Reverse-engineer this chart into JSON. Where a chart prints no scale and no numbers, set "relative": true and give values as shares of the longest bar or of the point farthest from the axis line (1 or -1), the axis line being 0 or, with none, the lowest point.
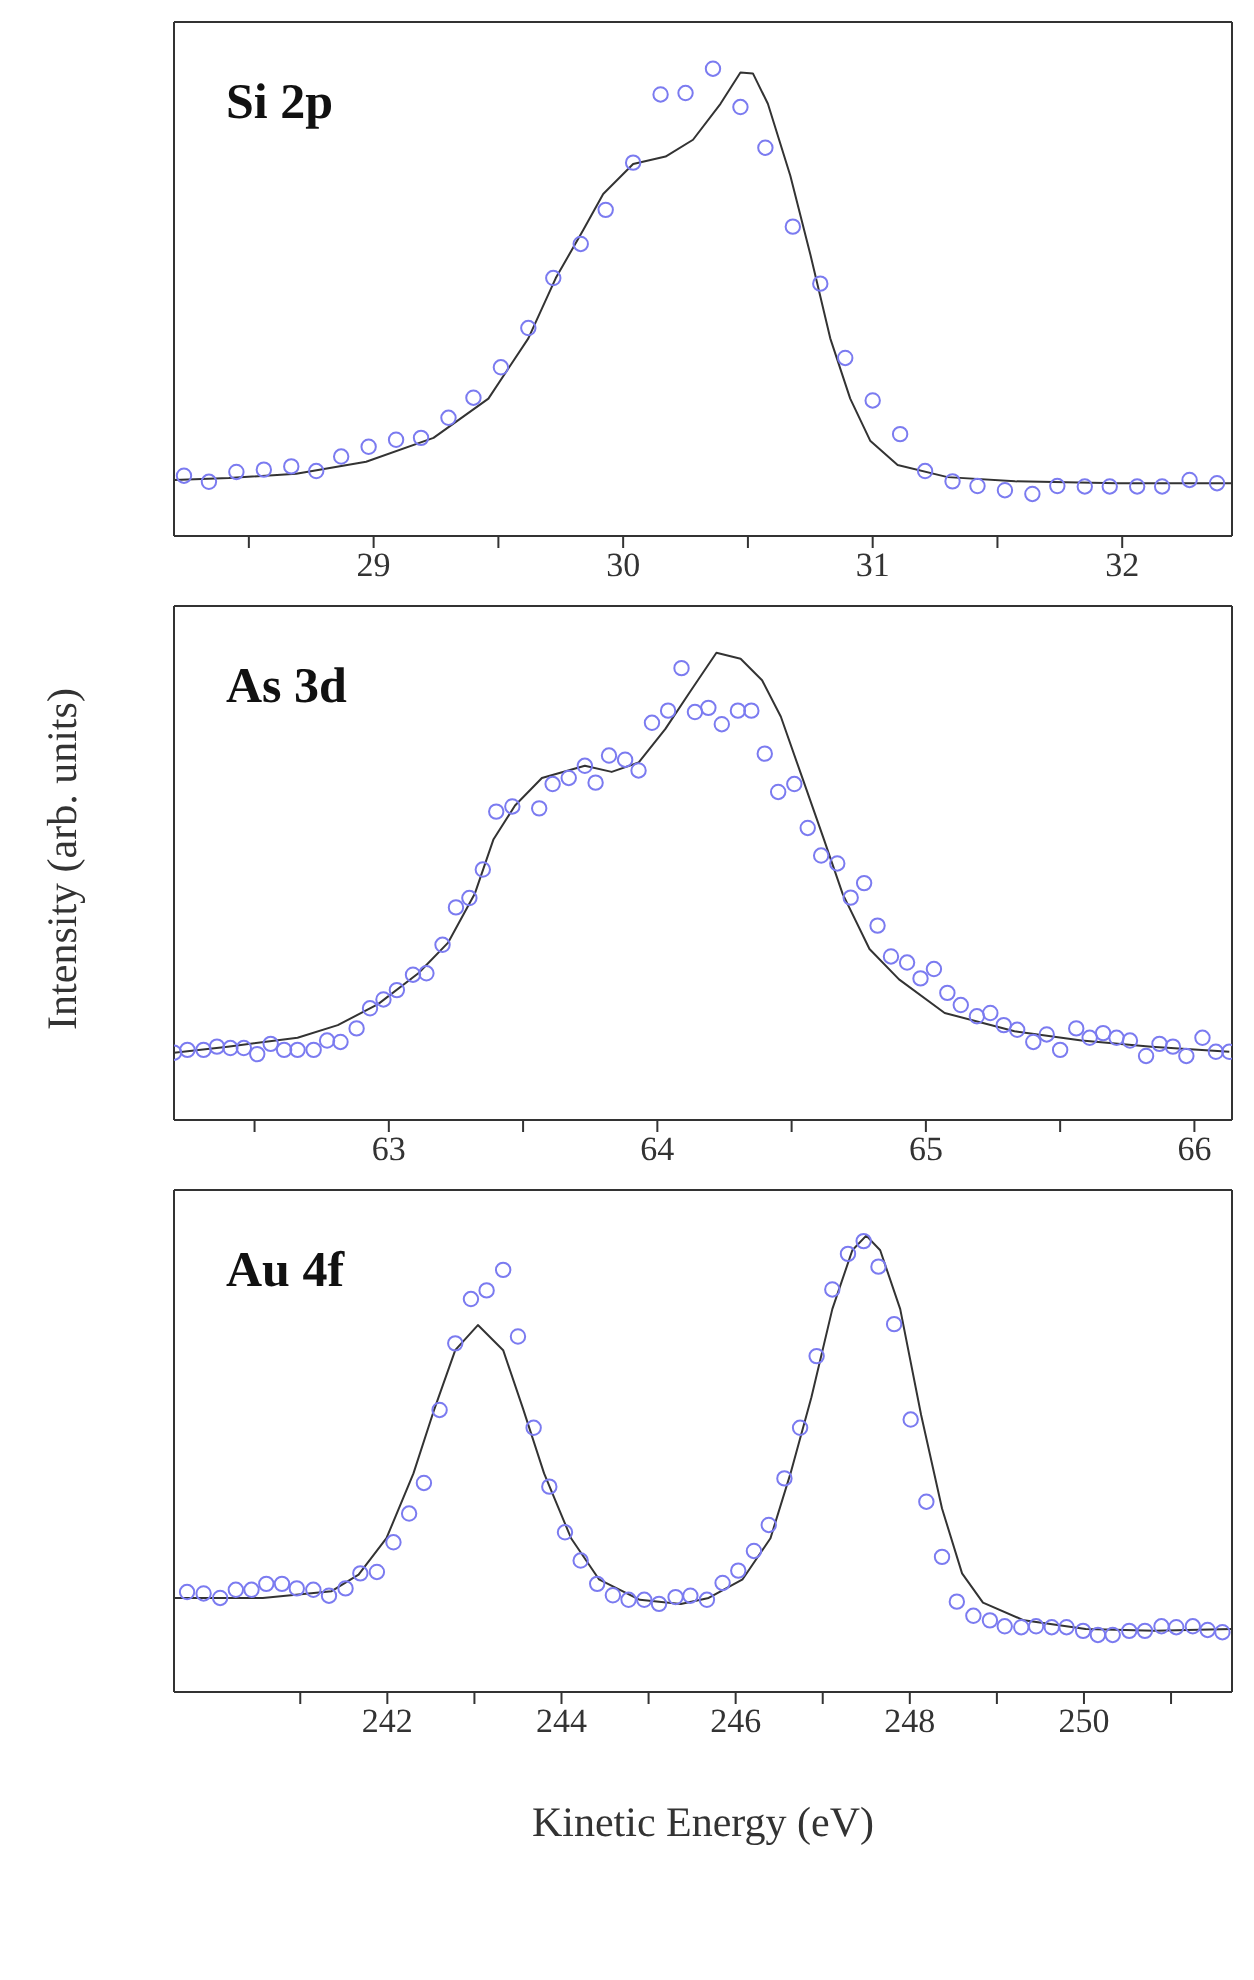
{
  "chart_data": [
    {
      "type": "line",
      "relative": true,
      "annotations": [
        "Si 2p"
      ],
      "xlim": [
        28.2,
        32.44
      ],
      "xticks": [
        {
          "value": 28.5,
          "label": null
        },
        29,
        {
          "value": 29.5,
          "label": null
        },
        30,
        {
          "value": 30.5,
          "label": null
        },
        31,
        {
          "value": 31.5,
          "label": null
        },
        32
      ],
      "tick_labels": "x",
      "series": [
        {
          "color": "#333333",
          "line_style": "solid",
          "x": [
            28.2,
            28.42,
            28.69,
            28.97,
            29.24,
            29.46,
            29.62,
            29.73,
            29.84,
            29.92,
            30.04,
            30.17,
            30.28,
            30.39,
            30.47,
            30.52,
            30.58,
            30.67,
            30.75,
            30.83,
            30.91,
            30.99,
            31.1,
            31.3,
            31.57,
            31.98,
            32.44
          ],
          "values": [
            0.12,
            0.124,
            0.133,
            0.159,
            0.21,
            0.294,
            0.423,
            0.552,
            0.655,
            0.732,
            0.796,
            0.812,
            0.848,
            0.925,
            0.992,
            0.99,
            0.925,
            0.771,
            0.603,
            0.423,
            0.294,
            0.204,
            0.152,
            0.126,
            0.117,
            0.113,
            0.113
          ]
        },
        {
          "type": "scatter",
          "color": "#7b7bf0",
          "marker": "circle",
          "x": [
            28.24,
            28.34,
            28.45,
            28.56,
            28.67,
            28.77,
            28.87,
            28.98,
            29.09,
            29.19,
            29.3,
            29.4,
            29.51,
            29.62,
            29.72,
            29.83,
            29.93,
            30.04,
            30.15,
            30.25,
            30.36,
            30.47,
            30.57,
            30.68,
            30.79,
            30.89,
            31.0,
            31.11,
            31.21,
            31.32,
            31.42,
            31.53,
            31.64,
            31.74,
            31.85,
            31.95,
            32.06,
            32.16,
            32.27,
            32.38
          ],
          "values": [
            0.129,
            0.116,
            0.137,
            0.142,
            0.149,
            0.139,
            0.17,
            0.191,
            0.206,
            0.21,
            0.253,
            0.296,
            0.361,
            0.445,
            0.552,
            0.625,
            0.698,
            0.799,
            0.945,
            0.948,
            1.0,
            0.918,
            0.831,
            0.662,
            0.54,
            0.381,
            0.29,
            0.218,
            0.139,
            0.117,
            0.107,
            0.098,
            0.09,
            0.107,
            0.106,
            0.106,
            0.106,
            0.106,
            0.12,
            0.113
          ]
        }
      ]
    },
    {
      "type": "line",
      "relative": true,
      "ylabel": "Intensity (arb. units)",
      "annotations": [
        "As 3d"
      ],
      "xlim": [
        62.2,
        66.14
      ],
      "xticks": [
        {
          "value": 62.5,
          "label": null
        },
        63,
        {
          "value": 63.5,
          "label": null
        },
        64,
        {
          "value": 64.5,
          "label": null
        },
        65,
        {
          "value": 65.5,
          "label": null
        },
        66
      ],
      "tick_labels": "x",
      "series": [
        {
          "color": "#333333",
          "line_style": "solid",
          "x": [
            62.2,
            62.4,
            62.66,
            62.81,
            62.96,
            63.11,
            63.22,
            63.32,
            63.39,
            63.47,
            63.57,
            63.73,
            63.83,
            63.93,
            64.03,
            64.12,
            64.22,
            64.31,
            64.39,
            64.46,
            64.54,
            64.62,
            64.69,
            64.79,
            64.9,
            65.07,
            65.33,
            65.58,
            65.84,
            66.13
          ],
          "values": [
            0.144,
            0.157,
            0.176,
            0.203,
            0.248,
            0.314,
            0.379,
            0.484,
            0.601,
            0.673,
            0.732,
            0.758,
            0.745,
            0.765,
            0.837,
            0.915,
            1.0,
            0.987,
            0.941,
            0.863,
            0.732,
            0.601,
            0.484,
            0.366,
            0.301,
            0.229,
            0.19,
            0.17,
            0.157,
            0.146
          ]
        },
        {
          "type": "scatter",
          "color": "#7b7bf0",
          "marker": "circle",
          "x": [
            62.2,
            62.25,
            62.31,
            62.36,
            62.41,
            62.46,
            62.51,
            62.56,
            62.61,
            62.66,
            62.72,
            62.77,
            62.82,
            62.88,
            62.93,
            62.98,
            63.03,
            63.09,
            63.14,
            63.2,
            63.25,
            63.3,
            63.35,
            63.4,
            63.46,
            63.56,
            63.61,
            63.67,
            63.73,
            63.77,
            63.82,
            63.88,
            63.93,
            63.98,
            64.04,
            64.09,
            64.14,
            64.19,
            64.24,
            64.3,
            64.35,
            64.4,
            64.45,
            64.51,
            64.56,
            64.61,
            64.67,
            64.72,
            64.77,
            64.82,
            64.87,
            64.93,
            64.98,
            65.03,
            65.08,
            65.13,
            65.19,
            65.24,
            65.29,
            65.34,
            65.4,
            65.45,
            65.5,
            65.56,
            65.61,
            65.66,
            65.71,
            65.76,
            65.82,
            65.87,
            65.92,
            65.97,
            66.03,
            66.08,
            66.13
          ],
          "values": [
            0.144,
            0.15,
            0.15,
            0.157,
            0.154,
            0.154,
            0.141,
            0.163,
            0.15,
            0.15,
            0.15,
            0.17,
            0.167,
            0.196,
            0.239,
            0.258,
            0.278,
            0.311,
            0.314,
            0.375,
            0.455,
            0.475,
            0.536,
            0.66,
            0.671,
            0.667,
            0.719,
            0.732,
            0.758,
            0.722,
            0.78,
            0.771,
            0.748,
            0.85,
            0.876,
            0.967,
            0.873,
            0.882,
            0.847,
            0.876,
            0.876,
            0.784,
            0.702,
            0.719,
            0.625,
            0.566,
            0.549,
            0.476,
            0.507,
            0.416,
            0.35,
            0.337,
            0.303,
            0.323,
            0.272,
            0.246,
            0.222,
            0.229,
            0.203,
            0.193,
            0.167,
            0.183,
            0.15,
            0.196,
            0.176,
            0.186,
            0.176,
            0.17,
            0.137,
            0.163,
            0.157,
            0.137,
            0.176,
            0.146,
            0.146
          ]
        }
      ]
    },
    {
      "type": "line",
      "relative": true,
      "xlabel": "Kinetic Energy (eV)",
      "annotations": [
        "Au 4f"
      ],
      "xlim": [
        239.55,
        251.7
      ],
      "xticks": [
        {
          "value": 241,
          "label": null
        },
        242,
        {
          "value": 243,
          "label": null
        },
        244,
        {
          "value": 245,
          "label": null
        },
        246,
        {
          "value": 247,
          "label": null
        },
        248,
        {
          "value": 249,
          "label": null
        },
        250,
        {
          "value": 251,
          "label": null
        }
      ],
      "tick_labels": "x",
      "series": [
        {
          "color": "#333333",
          "line_style": "solid",
          "x": [
            239.55,
            240.57,
            241.36,
            241.67,
            241.99,
            242.3,
            242.54,
            242.78,
            243.04,
            243.33,
            243.56,
            243.8,
            244.11,
            244.43,
            244.9,
            245.37,
            245.69,
            246.08,
            246.4,
            246.63,
            246.87,
            247.11,
            247.34,
            247.5,
            247.66,
            247.89,
            248.13,
            248.37,
            248.6,
            248.84,
            249.31,
            250.02,
            250.81,
            251.7
          ],
          "values": [
            0.206,
            0.206,
            0.221,
            0.257,
            0.337,
            0.479,
            0.62,
            0.749,
            0.804,
            0.749,
            0.62,
            0.479,
            0.337,
            0.247,
            0.202,
            0.193,
            0.206,
            0.247,
            0.337,
            0.479,
            0.646,
            0.839,
            0.968,
            1.0,
            0.968,
            0.839,
            0.607,
            0.402,
            0.26,
            0.196,
            0.157,
            0.138,
            0.134,
            0.138
          ]
        },
        {
          "type": "scatter",
          "color": "#7b7bf0",
          "marker": "circle",
          "x": [
            239.7,
            239.89,
            240.08,
            240.26,
            240.44,
            240.61,
            240.79,
            240.96,
            241.15,
            241.33,
            241.52,
            241.69,
            241.88,
            242.07,
            242.25,
            242.42,
            242.6,
            242.78,
            242.96,
            243.14,
            243.33,
            243.5,
            243.68,
            243.86,
            244.04,
            244.22,
            244.41,
            244.59,
            244.77,
            244.95,
            245.12,
            245.31,
            245.48,
            245.67,
            245.85,
            246.03,
            246.21,
            246.38,
            246.56,
            246.74,
            246.93,
            247.11,
            247.29,
            247.47,
            247.64,
            247.82,
            248.01,
            248.19,
            248.37,
            248.54,
            248.73,
            248.92,
            249.09,
            249.28,
            249.45,
            249.63,
            249.8,
            249.99,
            250.16,
            250.33,
            250.52,
            250.7,
            250.89,
            251.06,
            251.25,
            251.42,
            251.59
          ],
          "values": [
            0.219,
            0.216,
            0.206,
            0.224,
            0.224,
            0.237,
            0.237,
            0.227,
            0.224,
            0.211,
            0.227,
            0.26,
            0.263,
            0.328,
            0.391,
            0.458,
            0.618,
            0.764,
            0.861,
            0.88,
            0.925,
            0.779,
            0.579,
            0.45,
            0.35,
            0.288,
            0.237,
            0.212,
            0.202,
            0.202,
            0.193,
            0.208,
            0.211,
            0.202,
            0.239,
            0.266,
            0.309,
            0.366,
            0.468,
            0.579,
            0.736,
            0.882,
            0.96,
            0.988,
            0.932,
            0.806,
            0.597,
            0.417,
            0.296,
            0.198,
            0.167,
            0.157,
            0.144,
            0.142,
            0.144,
            0.142,
            0.142,
            0.134,
            0.125,
            0.125,
            0.134,
            0.134,
            0.144,
            0.142,
            0.144,
            0.136,
            0.131
          ]
        }
      ]
    }
  ]
}
